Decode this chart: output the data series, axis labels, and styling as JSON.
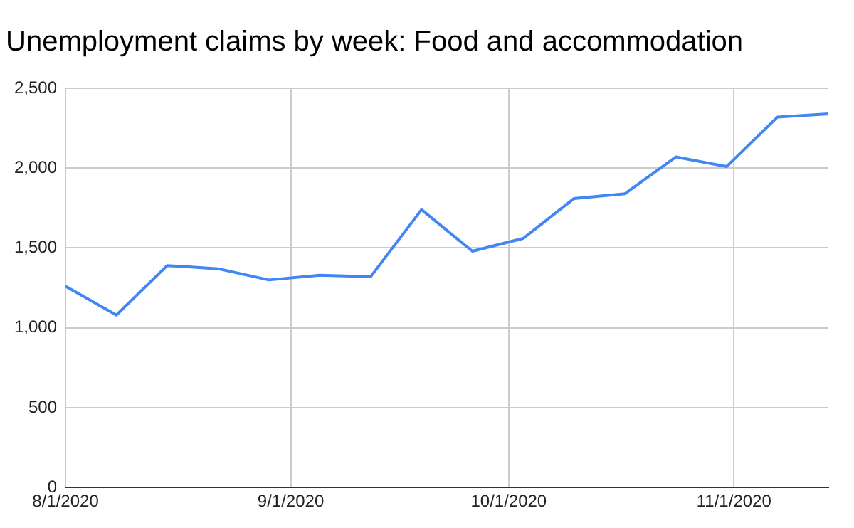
{
  "chart_data": {
    "type": "line",
    "title": "Unemployment claims by week: Food and accommodation",
    "x": [
      "2020-08-01",
      "2020-08-08",
      "2020-08-15",
      "2020-08-22",
      "2020-08-29",
      "2020-09-05",
      "2020-09-12",
      "2020-09-19",
      "2020-09-26",
      "2020-10-03",
      "2020-10-10",
      "2020-10-17",
      "2020-10-24",
      "2020-10-31",
      "2020-11-07",
      "2020-11-14"
    ],
    "series": [
      {
        "color": "#4285f4",
        "values": [
          1260,
          1080,
          1390,
          1370,
          1300,
          1330,
          1320,
          1740,
          1480,
          1560,
          1810,
          1840,
          2070,
          2010,
          2320,
          2340
        ]
      }
    ],
    "xlim": [
      "2020-08-01",
      "2020-11-14"
    ],
    "xticks": [
      {
        "value": "2020-08-01",
        "label": "8/1/2020"
      },
      {
        "value": "2020-09-01",
        "label": "9/1/2020"
      },
      {
        "value": "2020-10-01",
        "label": "10/1/2020"
      },
      {
        "value": "2020-11-01",
        "label": "11/1/2020"
      }
    ],
    "ylim": [
      0,
      2500
    ],
    "yticks": [
      0,
      500,
      {
        "value": 1000,
        "label": "1,000"
      },
      {
        "value": 1500,
        "label": "1,500"
      },
      {
        "value": 2000,
        "label": "2,000"
      },
      {
        "value": 2500,
        "label": "2,500"
      }
    ],
    "grid": true,
    "legend": false,
    "marker": "none",
    "line_style": "solid"
  }
}
